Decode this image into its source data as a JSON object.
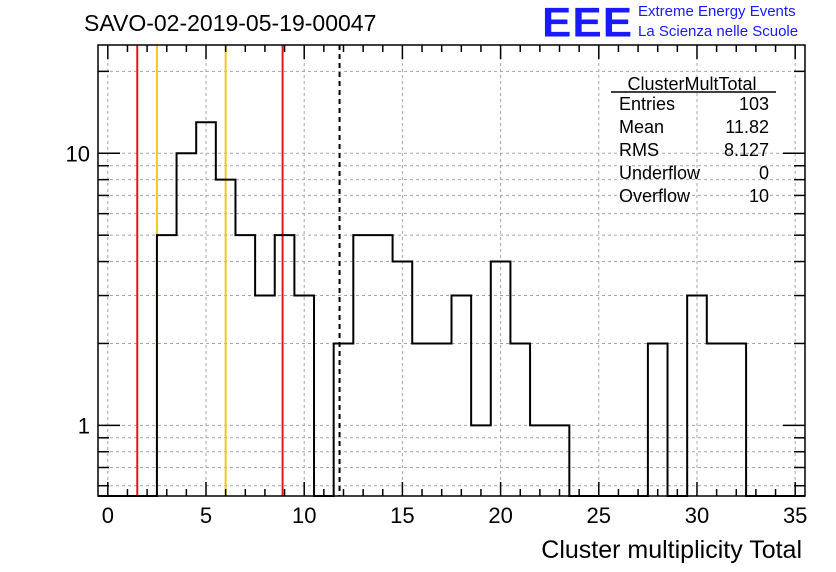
{
  "title": "SAVO-02-2019-05-19-00047",
  "logo": {
    "mark": "EEE",
    "line1": "Extreme Energy Events",
    "line2": "La Scienza nelle Scuole"
  },
  "stats": {
    "name": "ClusterMultTotal",
    "rows": [
      {
        "label": "Entries",
        "value": "103"
      },
      {
        "label": "Mean",
        "value": "11.82"
      },
      {
        "label": "RMS",
        "value": "8.127"
      },
      {
        "label": "Underflow",
        "value": "0"
      },
      {
        "label": "Overflow",
        "value": "10"
      }
    ]
  },
  "chart_data": {
    "type": "histogram",
    "xlabel": "Cluster multiplicity Total",
    "ylabel": "",
    "xlim": [
      -0.5,
      35.5
    ],
    "ylim": [
      0.55,
      25
    ],
    "yscale": "log",
    "grid": true,
    "x_ticks": [
      0,
      5,
      10,
      15,
      20,
      25,
      30,
      35
    ],
    "y_tick_labels": [
      {
        "value": 1,
        "label": "1"
      },
      {
        "value": 10,
        "label": "10"
      }
    ],
    "bin_width": 1,
    "bin_start": -0.5,
    "counts": [
      0,
      0,
      0,
      5,
      10,
      13,
      8,
      5,
      3,
      5,
      3,
      0,
      2,
      5,
      5,
      4,
      2,
      2,
      3,
      1,
      4,
      2,
      1,
      1,
      0,
      0,
      0,
      0,
      2,
      0,
      3,
      2,
      2,
      0,
      0,
      0
    ],
    "vertical_lines": [
      {
        "x": 1.5,
        "color": "#e8141a",
        "style": "solid"
      },
      {
        "x": 2.5,
        "color": "#f2c811",
        "style": "solid"
      },
      {
        "x": 6.0,
        "color": "#f2c811",
        "style": "solid"
      },
      {
        "x": 8.9,
        "color": "#e8141a",
        "style": "solid"
      },
      {
        "x": 11.8,
        "color": "#000000",
        "style": "dashed"
      }
    ]
  }
}
